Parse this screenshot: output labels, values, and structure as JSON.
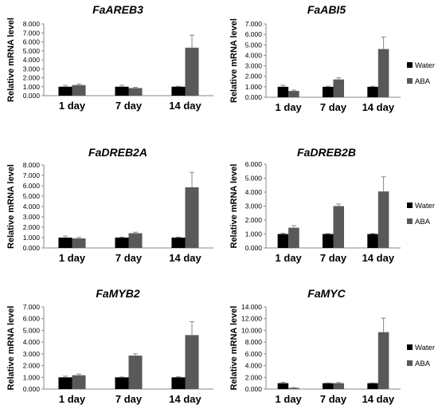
{
  "colors": {
    "water": "#000000",
    "aba": "#595959",
    "axis": "#888888",
    "error": "#888888"
  },
  "chart_data": [
    {
      "type": "bar",
      "title": "FaAREB3",
      "ylabel": "Relative mRNA level",
      "categories": [
        "1 day",
        "7 day",
        "14 day"
      ],
      "ylim": [
        0,
        8
      ],
      "yticks": [
        "0.000",
        "1.000",
        "2.000",
        "3.000",
        "4.000",
        "5.000",
        "6.000",
        "7.000",
        "8.000"
      ],
      "series": [
        {
          "name": "Water",
          "values": [
            1.0,
            1.0,
            1.0
          ],
          "errors": [
            0.15,
            0.15,
            0.05
          ]
        },
        {
          "name": "ABA",
          "values": [
            1.18,
            0.85,
            5.35
          ],
          "errors": [
            0.12,
            0.08,
            1.4
          ]
        }
      ],
      "legend": "none"
    },
    {
      "type": "bar",
      "title": "FaABI5",
      "ylabel": "Relative mRNA level",
      "categories": [
        "1 day",
        "7 day",
        "14 day"
      ],
      "ylim": [
        0,
        7
      ],
      "yticks": [
        "0.000",
        "1.000",
        "2.000",
        "3.000",
        "4.000",
        "5.000",
        "6.000",
        "7.000"
      ],
      "series": [
        {
          "name": "Water",
          "values": [
            1.0,
            1.0,
            1.0
          ],
          "errors": [
            0.15,
            0.05,
            0.05
          ]
        },
        {
          "name": "ABA",
          "values": [
            0.6,
            1.7,
            4.6
          ],
          "errors": [
            0.08,
            0.15,
            1.15
          ]
        }
      ],
      "legend": "right"
    },
    {
      "type": "bar",
      "title": "FaDREB2A",
      "ylabel": "Relative mRNA level",
      "categories": [
        "1 day",
        "7 day",
        "14 day"
      ],
      "ylim": [
        0,
        8
      ],
      "yticks": [
        "0.000",
        "1.000",
        "2.000",
        "3.000",
        "4.000",
        "5.000",
        "6.000",
        "7.000",
        "8.000"
      ],
      "series": [
        {
          "name": "Water",
          "values": [
            1.0,
            1.0,
            1.0
          ],
          "errors": [
            0.15,
            0.05,
            0.05
          ]
        },
        {
          "name": "ABA",
          "values": [
            0.92,
            1.42,
            5.85
          ],
          "errors": [
            0.1,
            0.1,
            1.45
          ]
        }
      ],
      "legend": "none"
    },
    {
      "type": "bar",
      "title": "FaDREB2B",
      "ylabel": "Relative mRNA level",
      "categories": [
        "1 day",
        "7 day",
        "14 day"
      ],
      "ylim": [
        0,
        6
      ],
      "yticks": [
        "0.000",
        "1.000",
        "2.000",
        "3.000",
        "4.000",
        "5.000",
        "6.000"
      ],
      "series": [
        {
          "name": "Water",
          "values": [
            1.0,
            1.0,
            1.0
          ],
          "errors": [
            0.05,
            0.03,
            0.03
          ]
        },
        {
          "name": "ABA",
          "values": [
            1.45,
            3.0,
            4.05
          ],
          "errors": [
            0.15,
            0.15,
            1.05
          ]
        }
      ],
      "legend": "right"
    },
    {
      "type": "bar",
      "title": "FaMYB2",
      "ylabel": "Relative mRNA level",
      "categories": [
        "1 day",
        "7 day",
        "14 day"
      ],
      "ylim": [
        0,
        7
      ],
      "yticks": [
        "0.000",
        "1.000",
        "2.000",
        "3.000",
        "4.000",
        "5.000",
        "6.000",
        "7.000"
      ],
      "series": [
        {
          "name": "Water",
          "values": [
            1.0,
            1.0,
            1.0
          ],
          "errors": [
            0.1,
            0.03,
            0.05
          ]
        },
        {
          "name": "ABA",
          "values": [
            1.18,
            2.85,
            4.6
          ],
          "errors": [
            0.1,
            0.15,
            1.15
          ]
        }
      ],
      "legend": "none"
    },
    {
      "type": "bar",
      "title": "FaMYC",
      "ylabel": "Relative mRNA level",
      "categories": [
        "1 day",
        "7 day",
        "14 day"
      ],
      "ylim": [
        0,
        14
      ],
      "yticks": [
        "0.000",
        "2.000",
        "4.000",
        "6.000",
        "8.000",
        "10.000",
        "12.000",
        "14.000"
      ],
      "series": [
        {
          "name": "Water",
          "values": [
            1.0,
            1.0,
            1.0
          ],
          "errors": [
            0.15,
            0.05,
            0.05
          ]
        },
        {
          "name": "ABA",
          "values": [
            0.2,
            1.0,
            9.7
          ],
          "errors": [
            0.05,
            0.1,
            2.4
          ]
        }
      ],
      "legend": "right"
    }
  ]
}
